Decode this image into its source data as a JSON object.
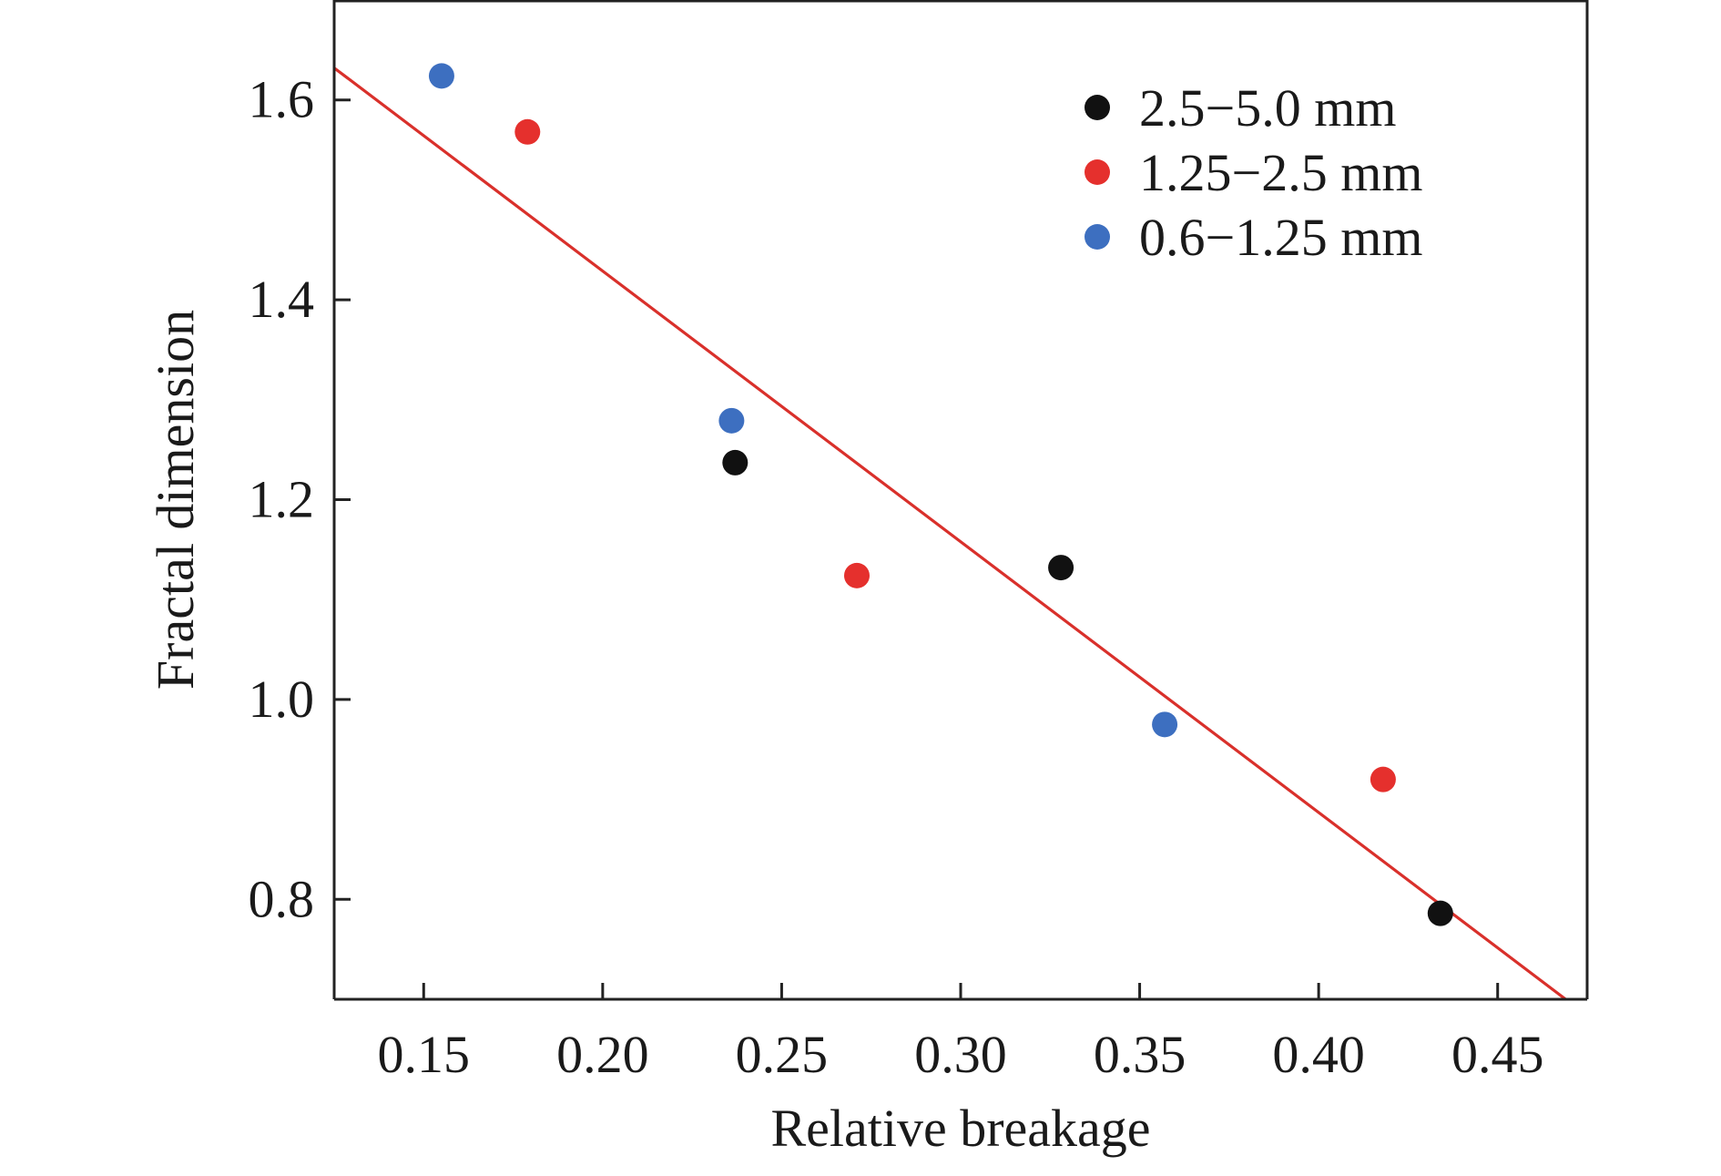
{
  "chart_data": {
    "type": "scatter",
    "title": "",
    "xlabel": "Relative breakage",
    "ylabel": "Fractal dimension",
    "xlim": [
      0.125,
      0.475
    ],
    "ylim": [
      0.7,
      1.7
    ],
    "xticks": [
      0.15,
      0.2,
      0.25,
      0.3,
      0.35,
      0.4,
      0.45
    ],
    "xtick_labels": [
      "0.15",
      "0.20",
      "0.25",
      "0.30",
      "0.35",
      "0.40",
      "0.45"
    ],
    "yticks": [
      0.8,
      1.0,
      1.2,
      1.4,
      1.6
    ],
    "ytick_labels": [
      "0.8",
      "1.0",
      "1.2",
      "1.4",
      "1.6"
    ],
    "grid": false,
    "legend_position": "top-right",
    "series": [
      {
        "name": "2.5−5.0 mm",
        "color": "#111111",
        "points": [
          [
            0.237,
            1.237
          ],
          [
            0.328,
            1.132
          ],
          [
            0.434,
            0.786
          ]
        ]
      },
      {
        "name": "1.25−2.5 mm",
        "color": "#e5302d",
        "points": [
          [
            0.179,
            1.568
          ],
          [
            0.271,
            1.124
          ],
          [
            0.418,
            0.92
          ]
        ]
      },
      {
        "name": "0.6−1.25 mm",
        "color": "#3d6fc0",
        "points": [
          [
            0.155,
            1.624
          ],
          [
            0.236,
            1.279
          ],
          [
            0.357,
            0.975
          ]
        ]
      }
    ],
    "fit_line": {
      "color": "#d9302b",
      "points": [
        [
          0.125,
          1.632
        ],
        [
          0.469,
          0.7
        ]
      ]
    }
  }
}
